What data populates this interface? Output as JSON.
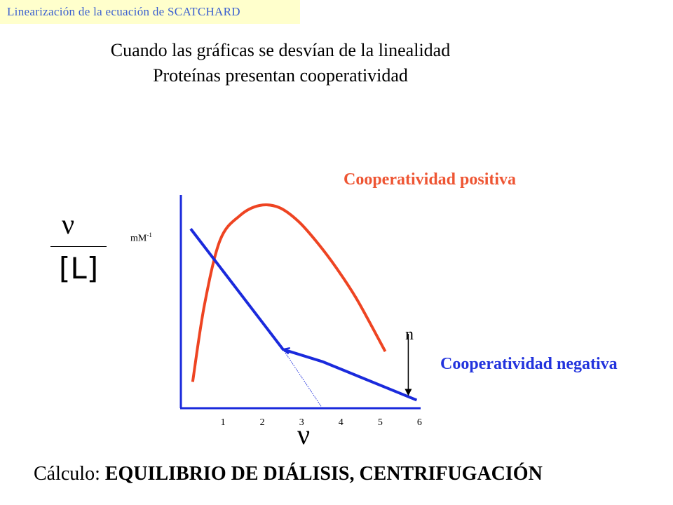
{
  "header": {
    "title": "Linearización de la ecuación de SCATCHARD"
  },
  "subtitle": {
    "line1": "Cuando las gráficas se desvían de la linealidad",
    "line2": "Proteínas presentan cooperatividad"
  },
  "labels": {
    "positive": "Cooperatividad positiva",
    "negative": "Cooperatividad negativa",
    "n": "n"
  },
  "axis": {
    "y_numerator": "ν",
    "y_denominator": "[L]",
    "y_unit": "mM",
    "y_unit_exp": "-1",
    "x_symbol": "ν"
  },
  "calc": {
    "prefix": "Cálculo: ",
    "methods": "EQUILIBRIO DE DIÁLISIS, CENTRIFUGACIÓN"
  },
  "chart_data": {
    "type": "line",
    "title": "",
    "xlabel": "ν",
    "ylabel": "ν / [L]",
    "xlim": [
      0,
      6.1
    ],
    "ylim": [
      0,
      10
    ],
    "x_ticks": [
      1,
      2,
      3,
      4,
      5,
      6
    ],
    "y_ticks": [],
    "grid": false,
    "series": [
      {
        "name": "Cooperatividad positiva",
        "color": "#ee4422",
        "x": [
          0.3,
          0.6,
          1.0,
          1.5,
          2.0,
          2.5,
          3.0,
          3.5,
          4.0,
          4.5,
          5.2
        ],
        "y": [
          1.3,
          5.1,
          8.3,
          9.5,
          10.0,
          9.9,
          9.2,
          8.1,
          6.8,
          5.3,
          2.8
        ]
      },
      {
        "name": "Cooperatividad negativa",
        "color": "#1a2adc",
        "x": [
          0.25,
          1.1,
          2.6,
          3.6,
          6.0
        ],
        "y": [
          8.85,
          6.7,
          2.9,
          2.3,
          0.4
        ]
      }
    ],
    "annotations": [
      {
        "type": "dotted-extrapolation",
        "x": [
          2.6,
          3.6
        ],
        "y": [
          2.9,
          0.0
        ]
      },
      {
        "type": "arrow-down-to-axis",
        "label": "n",
        "x": 6.0,
        "y_from": 2.7,
        "y_to": 0.4
      }
    ]
  }
}
